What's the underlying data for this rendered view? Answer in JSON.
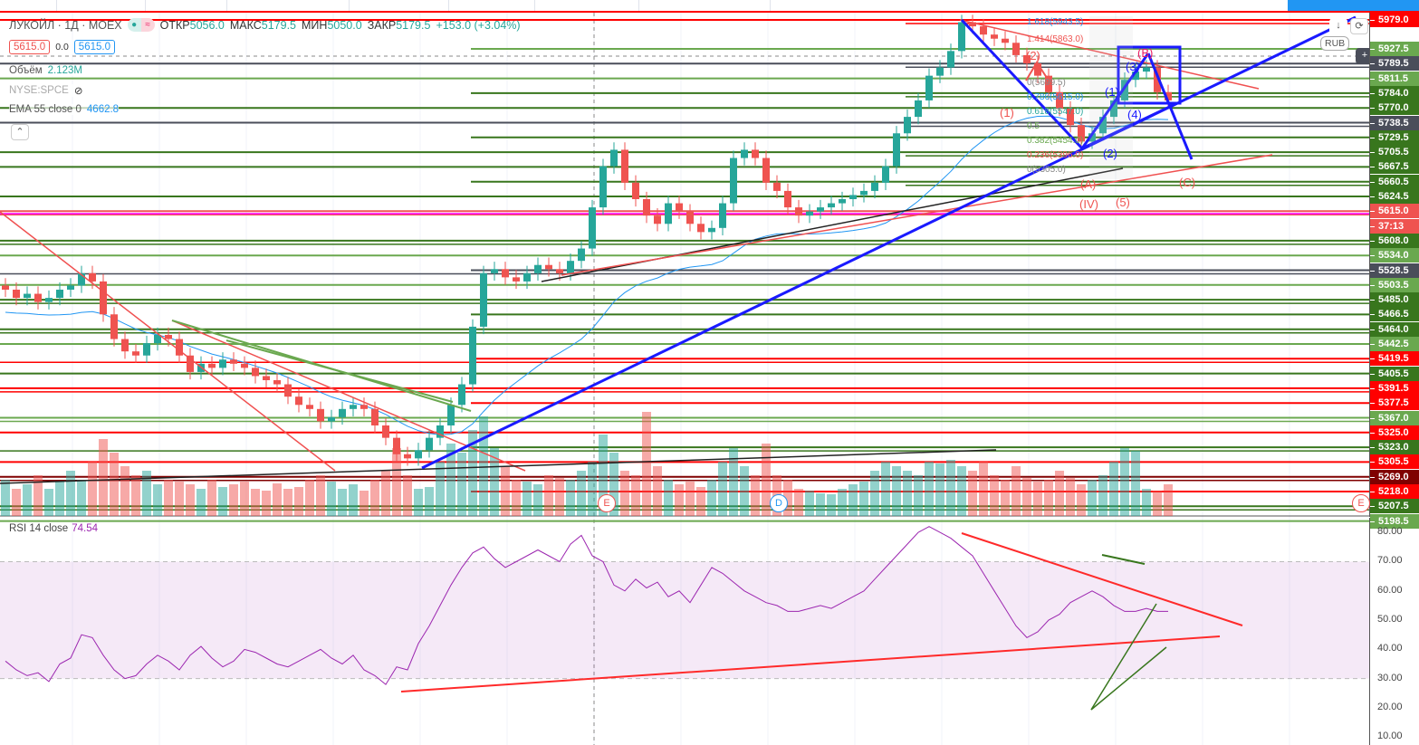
{
  "header": {
    "symbol": "ЛУКОЙЛ · 1Д · MOEX",
    "open_label": "ОТКР",
    "open": "5056.0",
    "high_label": "МАКС",
    "high": "5179.5",
    "low_label": "МИН",
    "low": "5050.0",
    "close_label": "ЗАКР",
    "close": "5179.5",
    "change": "+153.0 (+3.04%)"
  },
  "trade": {
    "sell": "5615.0",
    "spread": "0.0",
    "buy": "5615.0"
  },
  "indicators": {
    "volume_label": "Объём",
    "volume_value": "2.123M",
    "compare_symbol": "NYSE:SPCE",
    "ema_label": "EMA 55 close 0",
    "ema_value": "4662.8"
  },
  "currency": "RUB",
  "price_axis": [
    {
      "t": "5979.0",
      "c": "#ff0000"
    },
    {
      "t": "5927.5",
      "c": "#6aa84f"
    },
    {
      "t": "5789.5",
      "c": "#4a4e5a"
    },
    {
      "t": "5811.5",
      "c": "#6aa84f"
    },
    {
      "t": "5784.0",
      "c": "#38761d"
    },
    {
      "t": "5770.0",
      "c": "#38761d"
    },
    {
      "t": "5738.5",
      "c": "#4a4e5a"
    },
    {
      "t": "5729.5",
      "c": "#38761d"
    },
    {
      "t": "5705.5",
      "c": "#38761d"
    },
    {
      "t": "5667.5",
      "c": "#38761d"
    },
    {
      "t": "5660.5",
      "c": "#38761d"
    },
    {
      "t": "5624.5",
      "c": "#38761d"
    },
    {
      "t": "5615.0",
      "c": "#ef5350"
    },
    {
      "t": "37:13",
      "c": "#ef5350"
    },
    {
      "t": "5608.0",
      "c": "#38761d"
    },
    {
      "t": "5534.0",
      "c": "#6aa84f"
    },
    {
      "t": "5528.5",
      "c": "#4a4e5a"
    },
    {
      "t": "5503.5",
      "c": "#6aa84f"
    },
    {
      "t": "5485.0",
      "c": "#38761d"
    },
    {
      "t": "5466.5",
      "c": "#38761d"
    },
    {
      "t": "5464.0",
      "c": "#38761d"
    },
    {
      "t": "5442.5",
      "c": "#6aa84f"
    },
    {
      "t": "5419.5",
      "c": "#ff0000"
    },
    {
      "t": "5405.5",
      "c": "#38761d"
    },
    {
      "t": "5391.5",
      "c": "#ff0000"
    },
    {
      "t": "5377.5",
      "c": "#ff0000"
    },
    {
      "t": "5367.0",
      "c": "#6aa84f"
    },
    {
      "t": "5325.0",
      "c": "#ff0000"
    },
    {
      "t": "5323.0",
      "c": "#38761d"
    },
    {
      "t": "5305.5",
      "c": "#ff0000"
    },
    {
      "t": "5269.0",
      "c": "#800000"
    },
    {
      "t": "5218.0",
      "c": "#ff0000"
    },
    {
      "t": "5207.5",
      "c": "#38761d"
    },
    {
      "t": "5198.5",
      "c": "#6aa84f"
    }
  ],
  "fib_labels": [
    "1.618(5943.5)",
    "1.414(5863.0)",
    "0(5699.5)",
    "0.786(5615.0)",
    "0.618(5547.0)",
    "0.5",
    "0.382(5454.0)",
    "0.236(5396.0)",
    "0(5305.0)"
  ],
  "wave_labels": {
    "w1": "(1)",
    "w2": "(2)",
    "w3": "(3)",
    "w4": "(4)",
    "wA": "(A)",
    "wB": "(B)",
    "wC": "(C)",
    "wIV": "(IV)",
    "w5": "(5)",
    "b1": "(1)",
    "b2": "(2)",
    "b3": "(3)",
    "b4": "(4)"
  },
  "event_markers": {
    "e1": "E",
    "d1": "D",
    "e2": "E"
  },
  "rsi": {
    "label": "RSI 14 close",
    "value": "74.54",
    "axis": [
      "80.00",
      "70.00",
      "60.00",
      "50.00",
      "40.00",
      "30.00",
      "20.00",
      "10.00"
    ]
  },
  "colors": {
    "up": "#26a69a",
    "down": "#ef5350",
    "rsi": "#9c27b0",
    "ema": "#2196f3"
  },
  "chart_data": {
    "type": "candlestick",
    "close": [
      5320,
      5300,
      5310,
      5290,
      5300,
      5320,
      5330,
      5360,
      5340,
      5260,
      5200,
      5170,
      5160,
      5190,
      5210,
      5200,
      5160,
      5120,
      5140,
      5130,
      5150,
      5140,
      5130,
      5110,
      5100,
      5090,
      5060,
      5040,
      5030,
      5000,
      5010,
      5030,
      5040,
      5030,
      4990,
      4960,
      4920,
      4910,
      4930,
      4960,
      4990,
      5040,
      5090,
      5230,
      5360,
      5370,
      5350,
      5340,
      5360,
      5380,
      5370,
      5360,
      5390,
      5420,
      5520,
      5620,
      5660,
      5580,
      5540,
      5500,
      5480,
      5530,
      5510,
      5480,
      5460,
      5470,
      5530,
      5640,
      5660,
      5640,
      5580,
      5560,
      5520,
      5500,
      5510,
      5520,
      5530,
      5540,
      5550,
      5560,
      5580,
      5620,
      5700,
      5740,
      5780,
      5840,
      5860,
      5900,
      5970,
      5960,
      5940,
      5930,
      5920,
      5890,
      5870,
      5840,
      5800,
      5760,
      5720,
      5680,
      5700,
      5740,
      5780,
      5830,
      5850,
      5860,
      5800,
      5780
    ],
    "volume": [
      40,
      30,
      35,
      45,
      30,
      38,
      50,
      40,
      60,
      85,
      70,
      55,
      45,
      50,
      35,
      40,
      38,
      35,
      30,
      40,
      32,
      35,
      38,
      30,
      28,
      36,
      30,
      32,
      40,
      45,
      38,
      30,
      35,
      28,
      40,
      50,
      75,
      45,
      30,
      32,
      60,
      80,
      70,
      95,
      110,
      75,
      55,
      40,
      38,
      35,
      45,
      42,
      40,
      50,
      60,
      90,
      70,
      50,
      45,
      115,
      55,
      40,
      35,
      38,
      32,
      40,
      60,
      75,
      55,
      45,
      80,
      45,
      40,
      30,
      28,
      25,
      24,
      30,
      35,
      38,
      50,
      60,
      55,
      50,
      45,
      60,
      58,
      62,
      55,
      50,
      60,
      45,
      40,
      55,
      42,
      38,
      40,
      50,
      42,
      35,
      40,
      45,
      60,
      75,
      72,
      30,
      28,
      35
    ],
    "rsi": [
      36,
      33,
      31,
      32,
      29,
      35,
      37,
      45,
      44,
      38,
      33,
      30,
      31,
      35,
      38,
      36,
      33,
      38,
      41,
      37,
      34,
      36,
      40,
      39,
      37,
      35,
      34,
      36,
      38,
      40,
      37,
      35,
      38,
      33,
      31,
      28,
      34,
      33,
      42,
      48,
      55,
      62,
      68,
      73,
      75,
      71,
      68,
      70,
      72,
      74,
      72,
      70,
      76,
      79,
      72,
      70,
      62,
      60,
      64,
      61,
      63,
      58,
      60,
      56,
      62,
      68,
      66,
      63,
      60,
      58,
      56,
      55,
      53,
      53,
      54,
      55,
      54,
      56,
      58,
      60,
      64,
      68,
      72,
      76,
      80,
      82,
      80,
      78,
      75,
      72,
      66,
      60,
      54,
      48,
      44,
      46,
      50,
      52,
      56,
      58,
      60,
      58,
      55,
      53,
      53,
      54,
      53,
      53
    ],
    "rsi_range": [
      10,
      85
    ]
  }
}
